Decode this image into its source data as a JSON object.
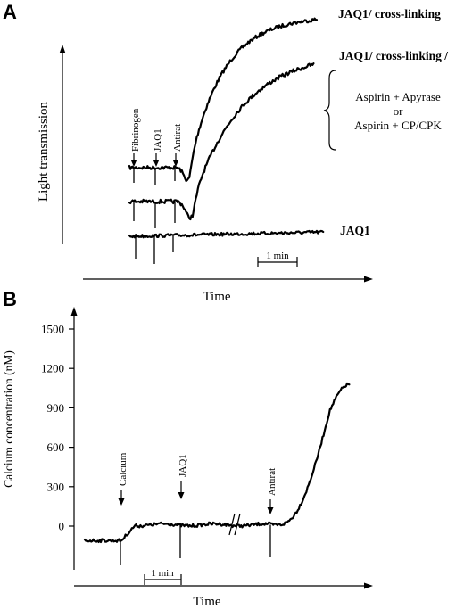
{
  "chart_data": [
    {
      "type": "line",
      "panel": "A",
      "xlabel": "Time",
      "ylabel": "Light transmission",
      "scale_bar": "1 min",
      "markers": [
        "Fibrinogen",
        "JAQ1",
        "Antirat"
      ],
      "series": [
        {
          "label": "JAQ1/ cross-linking"
        },
        {
          "label": "JAQ1/ cross-linking /"
        },
        {
          "label": "JAQ1"
        }
      ],
      "bracket_lines": [
        "Aspirin + Apyrase",
        "or",
        "Aspirin + CP/CPK"
      ]
    },
    {
      "type": "line",
      "panel": "B",
      "xlabel": "Time",
      "ylabel": "Calcium concentration (nM)",
      "yticks": [
        0,
        300,
        600,
        900,
        1200,
        1500
      ],
      "ylim": [
        -150,
        1650
      ],
      "scale_bar": "1 min",
      "markers": [
        "Calcium",
        "JAQ1",
        "Antirat"
      ],
      "series": [
        {
          "label": "",
          "values": [
            -110,
            -110,
            -110,
            -110,
            -110,
            10,
            10,
            10,
            10,
            10,
            10,
            10,
            10,
            10,
            10,
            20,
            200,
            500,
            800,
            1000,
            1080
          ]
        }
      ]
    }
  ]
}
